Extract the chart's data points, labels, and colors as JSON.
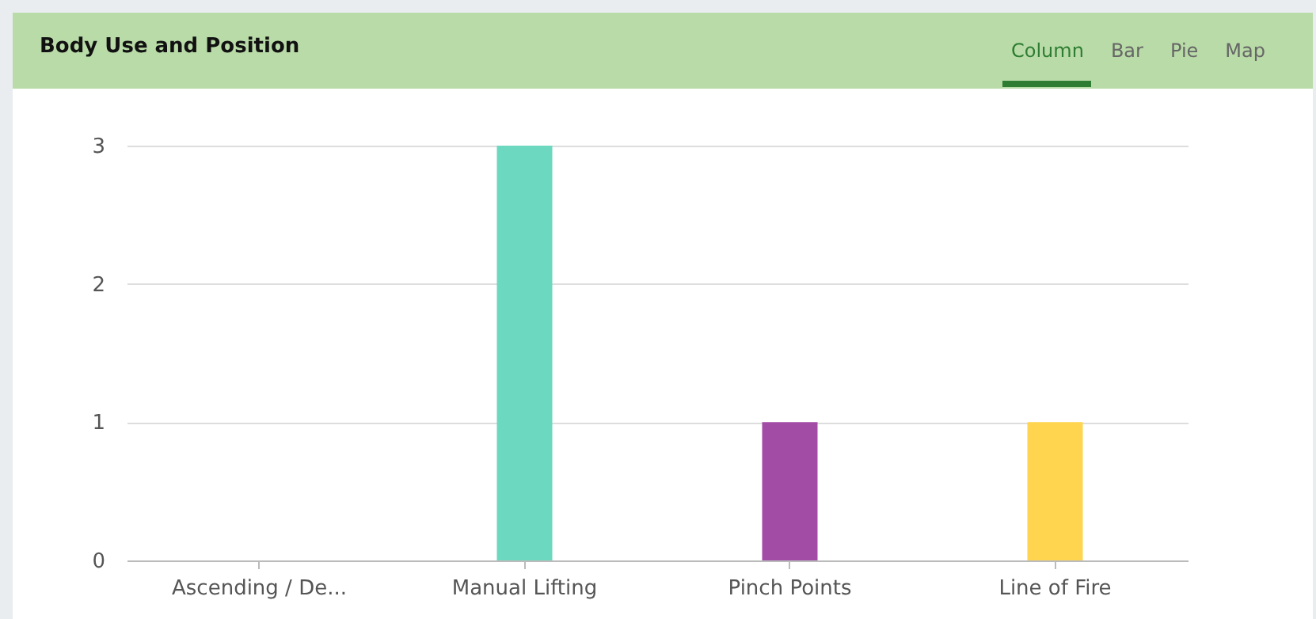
{
  "chart_data": {
    "type": "bar",
    "title": "Body Use and Position",
    "categories": [
      "Ascending / De...",
      "Manual Lifting",
      "Pinch Points",
      "Line of Fire"
    ],
    "values": [
      0,
      3,
      1,
      1
    ],
    "colors": [
      "#5bc0de",
      "#6cd8c0",
      "#a34ca6",
      "#ffd54f"
    ],
    "ylim": [
      0,
      3
    ],
    "yticks": [
      0,
      1,
      2,
      3
    ],
    "grid": "y",
    "legend": false,
    "annotations": [
      "Column",
      "Bar",
      "Pie",
      "Map"
    ]
  }
}
